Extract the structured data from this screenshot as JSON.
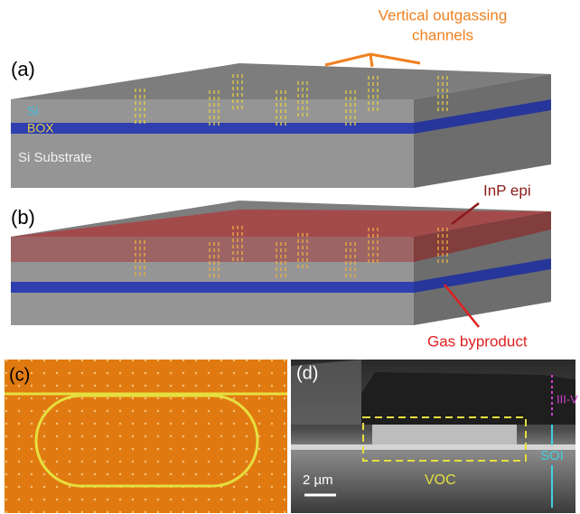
{
  "panel_a": {
    "label": "(a)",
    "annotation": [
      "Vertical outgassing",
      "channels"
    ],
    "layers": [
      "Si",
      "BOX",
      "Si Substrate"
    ]
  },
  "panel_b": {
    "label": "(b)",
    "annotations": [
      "InP epi",
      "Gas byproduct"
    ]
  },
  "panel_c": {
    "label": "(c)"
  },
  "panel_d": {
    "label": "(d)",
    "annotations": [
      "III-V",
      "SOI",
      "VOC"
    ],
    "scale_bar": "2 µm"
  }
}
